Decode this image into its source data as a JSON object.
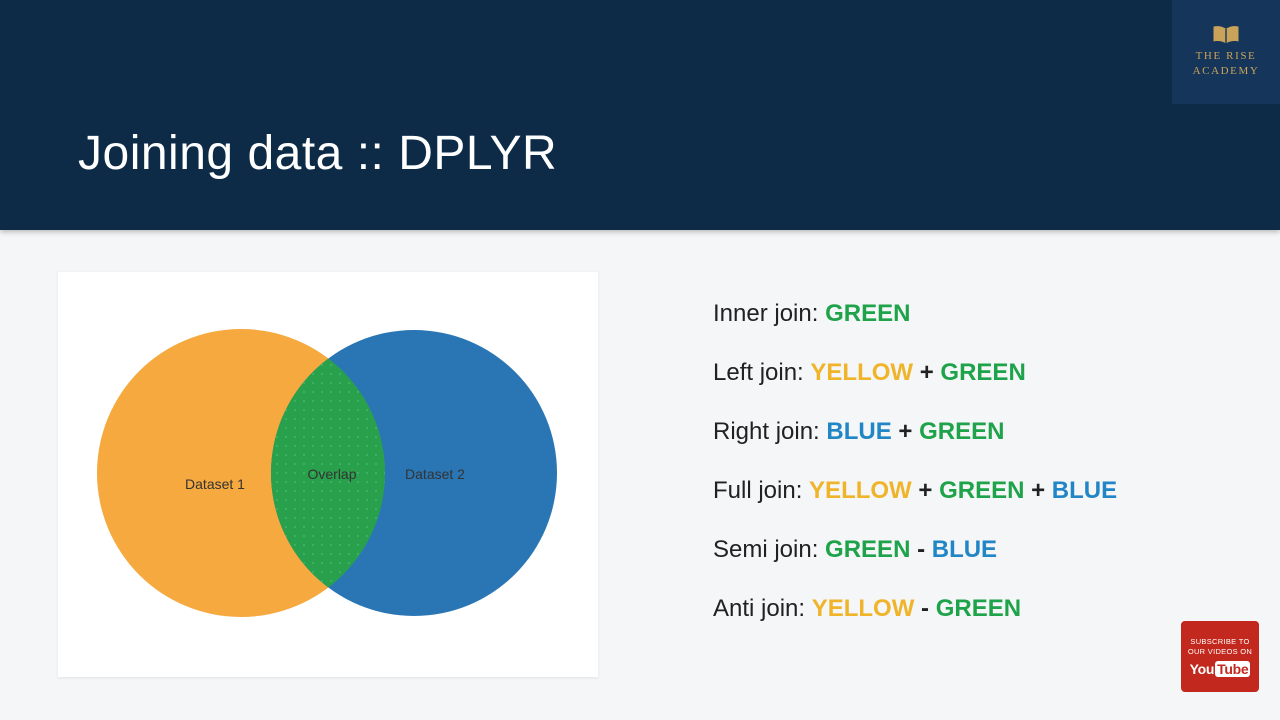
{
  "header": {
    "title": "Joining data :: DPLYR"
  },
  "logo": {
    "line1": "THE RISE",
    "line2": "ACADEMY",
    "gold": "#c9a35a",
    "box_color": "#15365a"
  },
  "venn": {
    "left_label": "Dataset 1",
    "overlap_label": "Overlap",
    "right_label": "Dataset 2",
    "left_color": "#f5a93f",
    "right_color": "#2a76b5",
    "overlap_color": "#28a04c"
  },
  "colors": {
    "plain": "#212121",
    "green": "#1ea34a",
    "yellow": "#f0b42a",
    "blue": "#2186c6"
  },
  "joins": [
    {
      "segments": [
        {
          "t": "Inner join: ",
          "c": "plain",
          "b": false
        },
        {
          "t": "GREEN",
          "c": "green",
          "b": true
        }
      ]
    },
    {
      "segments": [
        {
          "t": "Left join: ",
          "c": "plain",
          "b": false
        },
        {
          "t": "YELLOW",
          "c": "yellow",
          "b": true
        },
        {
          "t": " + ",
          "c": "plain",
          "b": true
        },
        {
          "t": "GREEN",
          "c": "green",
          "b": true
        }
      ]
    },
    {
      "segments": [
        {
          "t": "Right join: ",
          "c": "plain",
          "b": false
        },
        {
          "t": "BLUE",
          "c": "blue",
          "b": true
        },
        {
          "t": " + ",
          "c": "plain",
          "b": true
        },
        {
          "t": "GREEN",
          "c": "green",
          "b": true
        }
      ]
    },
    {
      "segments": [
        {
          "t": "Full join: ",
          "c": "plain",
          "b": false
        },
        {
          "t": "YELLOW",
          "c": "yellow",
          "b": true
        },
        {
          "t": " + ",
          "c": "plain",
          "b": true
        },
        {
          "t": "GREEN",
          "c": "green",
          "b": true
        },
        {
          "t": " + ",
          "c": "plain",
          "b": true
        },
        {
          "t": "BLUE",
          "c": "blue",
          "b": true
        }
      ]
    },
    {
      "segments": [
        {
          "t": "Semi join: ",
          "c": "plain",
          "b": false
        },
        {
          "t": "GREEN",
          "c": "green",
          "b": true
        },
        {
          "t": " - ",
          "c": "plain",
          "b": true
        },
        {
          "t": "BLUE",
          "c": "blue",
          "b": true
        }
      ]
    },
    {
      "segments": [
        {
          "t": "Anti join: ",
          "c": "plain",
          "b": false
        },
        {
          "t": "YELLOW",
          "c": "yellow",
          "b": true
        },
        {
          "t": " - ",
          "c": "plain",
          "b": true
        },
        {
          "t": "GREEN",
          "c": "green",
          "b": true
        }
      ]
    }
  ],
  "subscribe": {
    "line1": "SUBSCRIBE TO",
    "line2": "OUR VIDEOS ON",
    "brand_you": "You",
    "brand_tube": "Tube",
    "badge_color": "#c2281d"
  }
}
